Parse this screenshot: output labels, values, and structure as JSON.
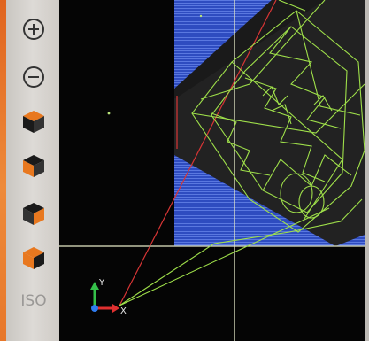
{
  "toolbar": {
    "zoom_in": {
      "icon": "zoom-in-icon"
    },
    "zoom_out": {
      "icon": "zoom-out-icon"
    },
    "view_buttons": [
      {
        "icon": "cube-view-icon",
        "highlight": "#e8781f"
      },
      {
        "icon": "cube-view-icon",
        "highlight": "#e8781f"
      },
      {
        "icon": "cube-view-icon",
        "highlight": "#e8781f"
      },
      {
        "icon": "cube-view-icon",
        "highlight": "#e8781f"
      }
    ],
    "iso_label": "ISO"
  },
  "viewport": {
    "axes": {
      "y_label": "Y",
      "x_label": "X"
    },
    "colors": {
      "background": "#050505",
      "toolpath": "#9fe04a",
      "stock_top": "#3a58c9",
      "stock_body": "#2a2a2a",
      "rapid_move": "#d83535",
      "crosshair": "#e6ebc8",
      "axis_x": "#e03030",
      "axis_y": "#35c04a",
      "axis_z": "#2f7cf0",
      "accent": "#e8781f"
    }
  }
}
